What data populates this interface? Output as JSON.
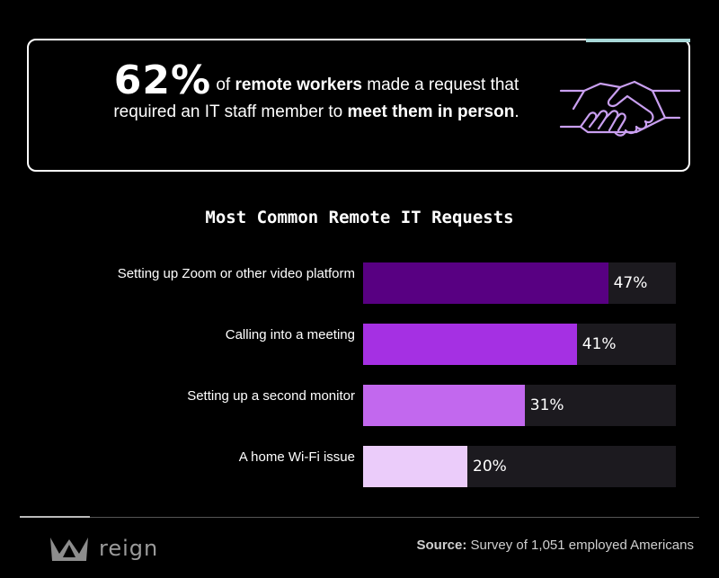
{
  "callout": {
    "stat": "62%",
    "text_1": " of ",
    "bold_1": "remote workers",
    "text_2": " made a request that required an IT staff member to ",
    "bold_2": "meet them in person",
    "text_3": ".",
    "icon": "handshake-icon"
  },
  "chart_data": {
    "type": "bar",
    "orientation": "horizontal",
    "title": "Most Common Remote IT Requests",
    "categories": [
      "Setting up Zoom or other video platform",
      "Calling into a meeting",
      "Setting up a second monitor",
      "A home Wi-Fi issue"
    ],
    "values": [
      47,
      41,
      31,
      20
    ],
    "value_labels": [
      "47%",
      "41%",
      "31%",
      "20%"
    ],
    "xlim": [
      0,
      60
    ],
    "colors": [
      "#580082",
      "#a530e3",
      "#c268ee",
      "#ebccfa"
    ],
    "track_color": "#1c1a1f",
    "grid": false,
    "legend": "none"
  },
  "footer": {
    "brand": "reign",
    "source_label": "Source:",
    "source_text": " Survey of 1,051 employed Americans"
  },
  "colors": {
    "background": "#000000",
    "accent": "#a8d8d8",
    "icon": "#c99ff0"
  }
}
